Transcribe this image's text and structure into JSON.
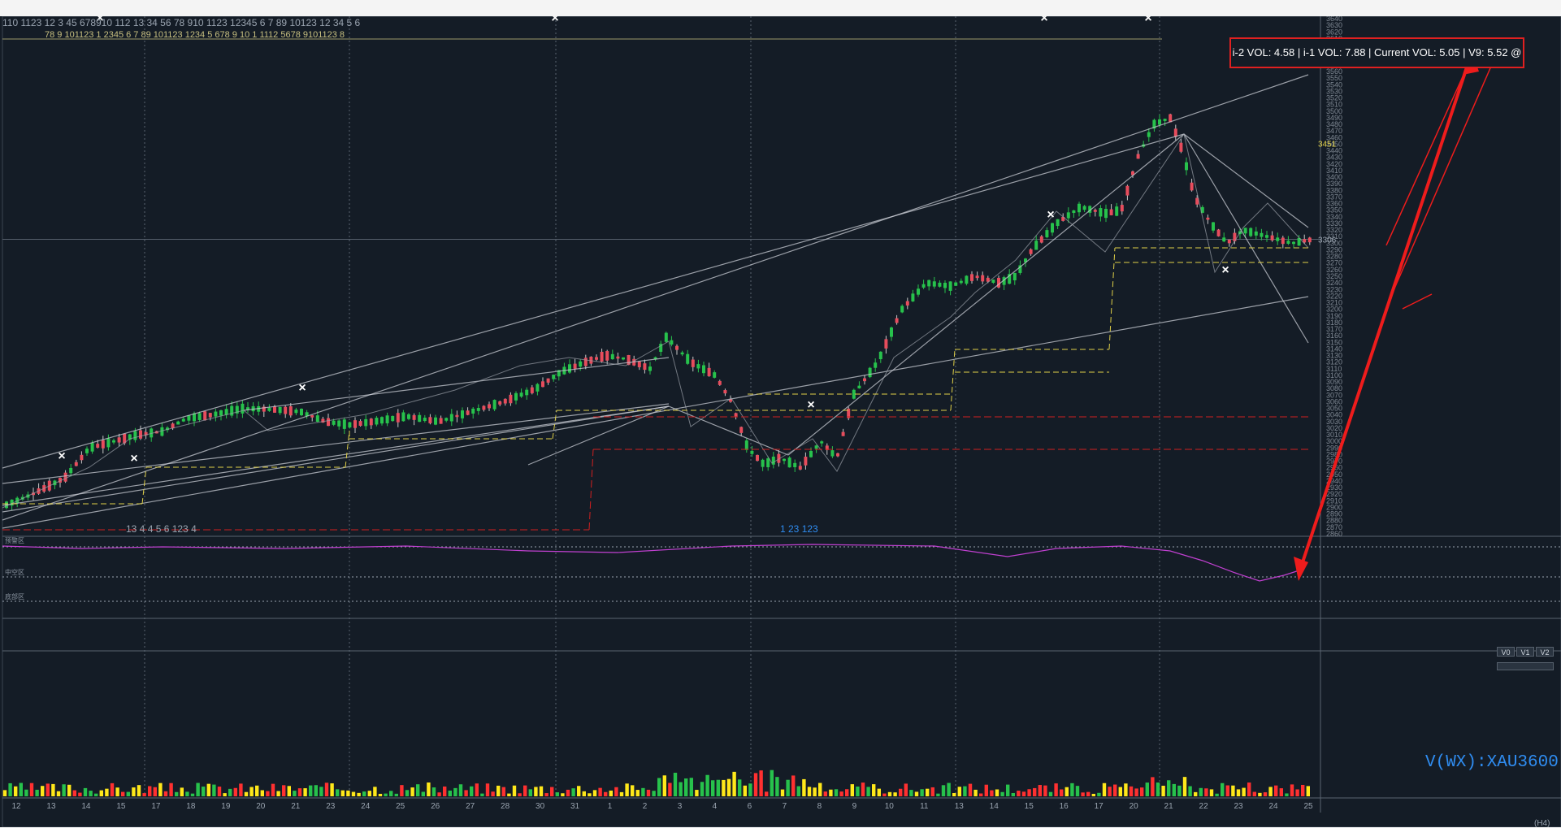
{
  "toolbar": {
    "volume_readout": "i-2 VOL: 4.58 | i-1 VOL: 7.88 | Current VOL: 5.05 | V9: 5.52 @"
  },
  "symbol_label": "V(WX):XAU3600",
  "timeframe": "(H4)",
  "view_buttons": [
    "V0",
    "V1",
    "V2"
  ],
  "price_marks": {
    "upper_channel": "3595",
    "annotation": "3451",
    "current_price": "3306"
  },
  "top_counters": "110  1123   12  3      45  678910    112   13                      34     56   78   910               1123          12345  6   7    89   10123        12        34    5     6",
  "top_counters_row2": "78  9  101123     1   2345     6                    7   89 101123                          1234  5  678 9   10       1    1112 5678     9101123  8",
  "bottom_counters": "13                                                                        4                    4           5  6       123     4",
  "bottom_counters_row2": "1   23                                    123",
  "colors": {
    "background": "#141c26",
    "bull": "#27c24c",
    "bear": "#e74c5c",
    "channel": "#c9ccd4",
    "support_yellow": "#e0d048",
    "support_red": "#d02020",
    "oscillator": "#c040d0",
    "annotation_arrow": "#ee1c1c",
    "symbol_text": "#2f8cf0",
    "axis_text": "#7f8893"
  },
  "price_axis": {
    "min": 2860,
    "max": 3640,
    "step": 10,
    "current": 3306
  },
  "date_axis": [
    "12",
    "13",
    "14",
    "15",
    "17",
    "18",
    "19",
    "20",
    "21",
    "23",
    "24",
    "25",
    "26",
    "27",
    "28",
    "30",
    "31",
    "1",
    "2",
    "3",
    "4",
    "6",
    "7",
    "8",
    "9",
    "10",
    "11",
    "13",
    "14",
    "15",
    "16",
    "17",
    "20",
    "21",
    "22",
    "23",
    "24",
    "25"
  ],
  "pane_labels": [
    "预警区",
    "中空区",
    "底部区"
  ]
}
